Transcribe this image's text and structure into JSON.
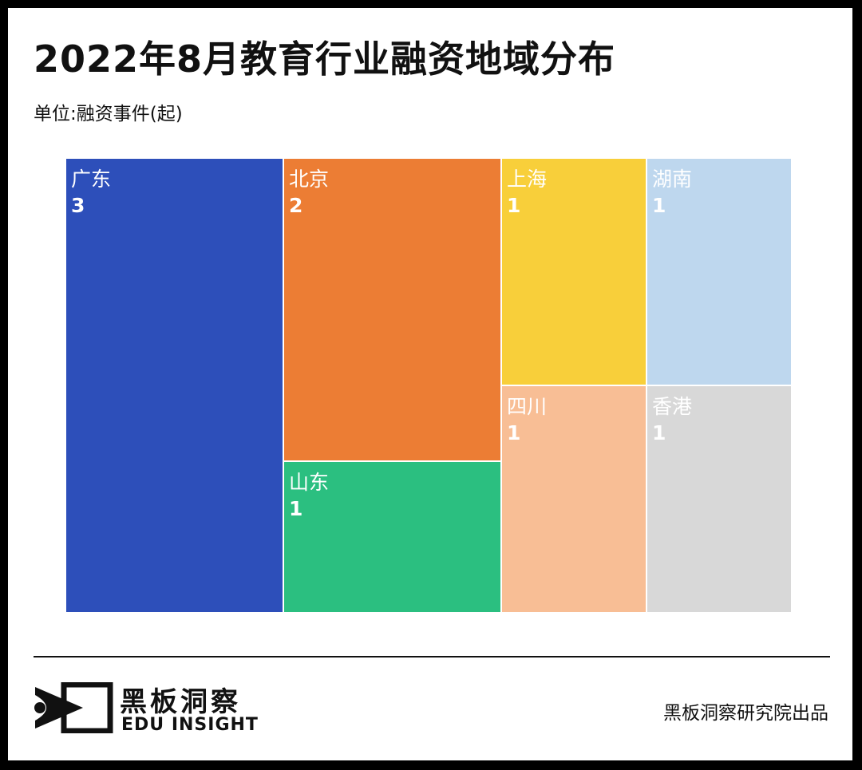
{
  "title": "2022年8月教育行业融资地域分布",
  "unit_label": "单位:融资事件(起)",
  "chart_data": {
    "type": "treemap",
    "title": "2022年8月教育行业融资地域分布",
    "unit": "单位:融资事件(起)",
    "items": [
      {
        "name": "广东",
        "value": 3,
        "value_label": "3",
        "color": "#2D4FBA"
      },
      {
        "name": "北京",
        "value": 2,
        "value_label": "2",
        "color": "#EC7D34"
      },
      {
        "name": "山东",
        "value": 1,
        "value_label": "1",
        "color": "#2BBF80"
      },
      {
        "name": "上海",
        "value": 1,
        "value_label": "1",
        "color": "#F8CF3A"
      },
      {
        "name": "四川",
        "value": 1,
        "value_label": "1",
        "color": "#F8BE95"
      },
      {
        "name": "湖南",
        "value": 1,
        "value_label": "1",
        "color": "#BED7EE"
      },
      {
        "name": "香港",
        "value": 1,
        "value_label": "1",
        "color": "#D8D8D8"
      }
    ]
  },
  "footer": {
    "brand_cn": "黑板洞察",
    "brand_en": "EDU INSIGHT",
    "credit": "黑板洞察研究院出品"
  }
}
